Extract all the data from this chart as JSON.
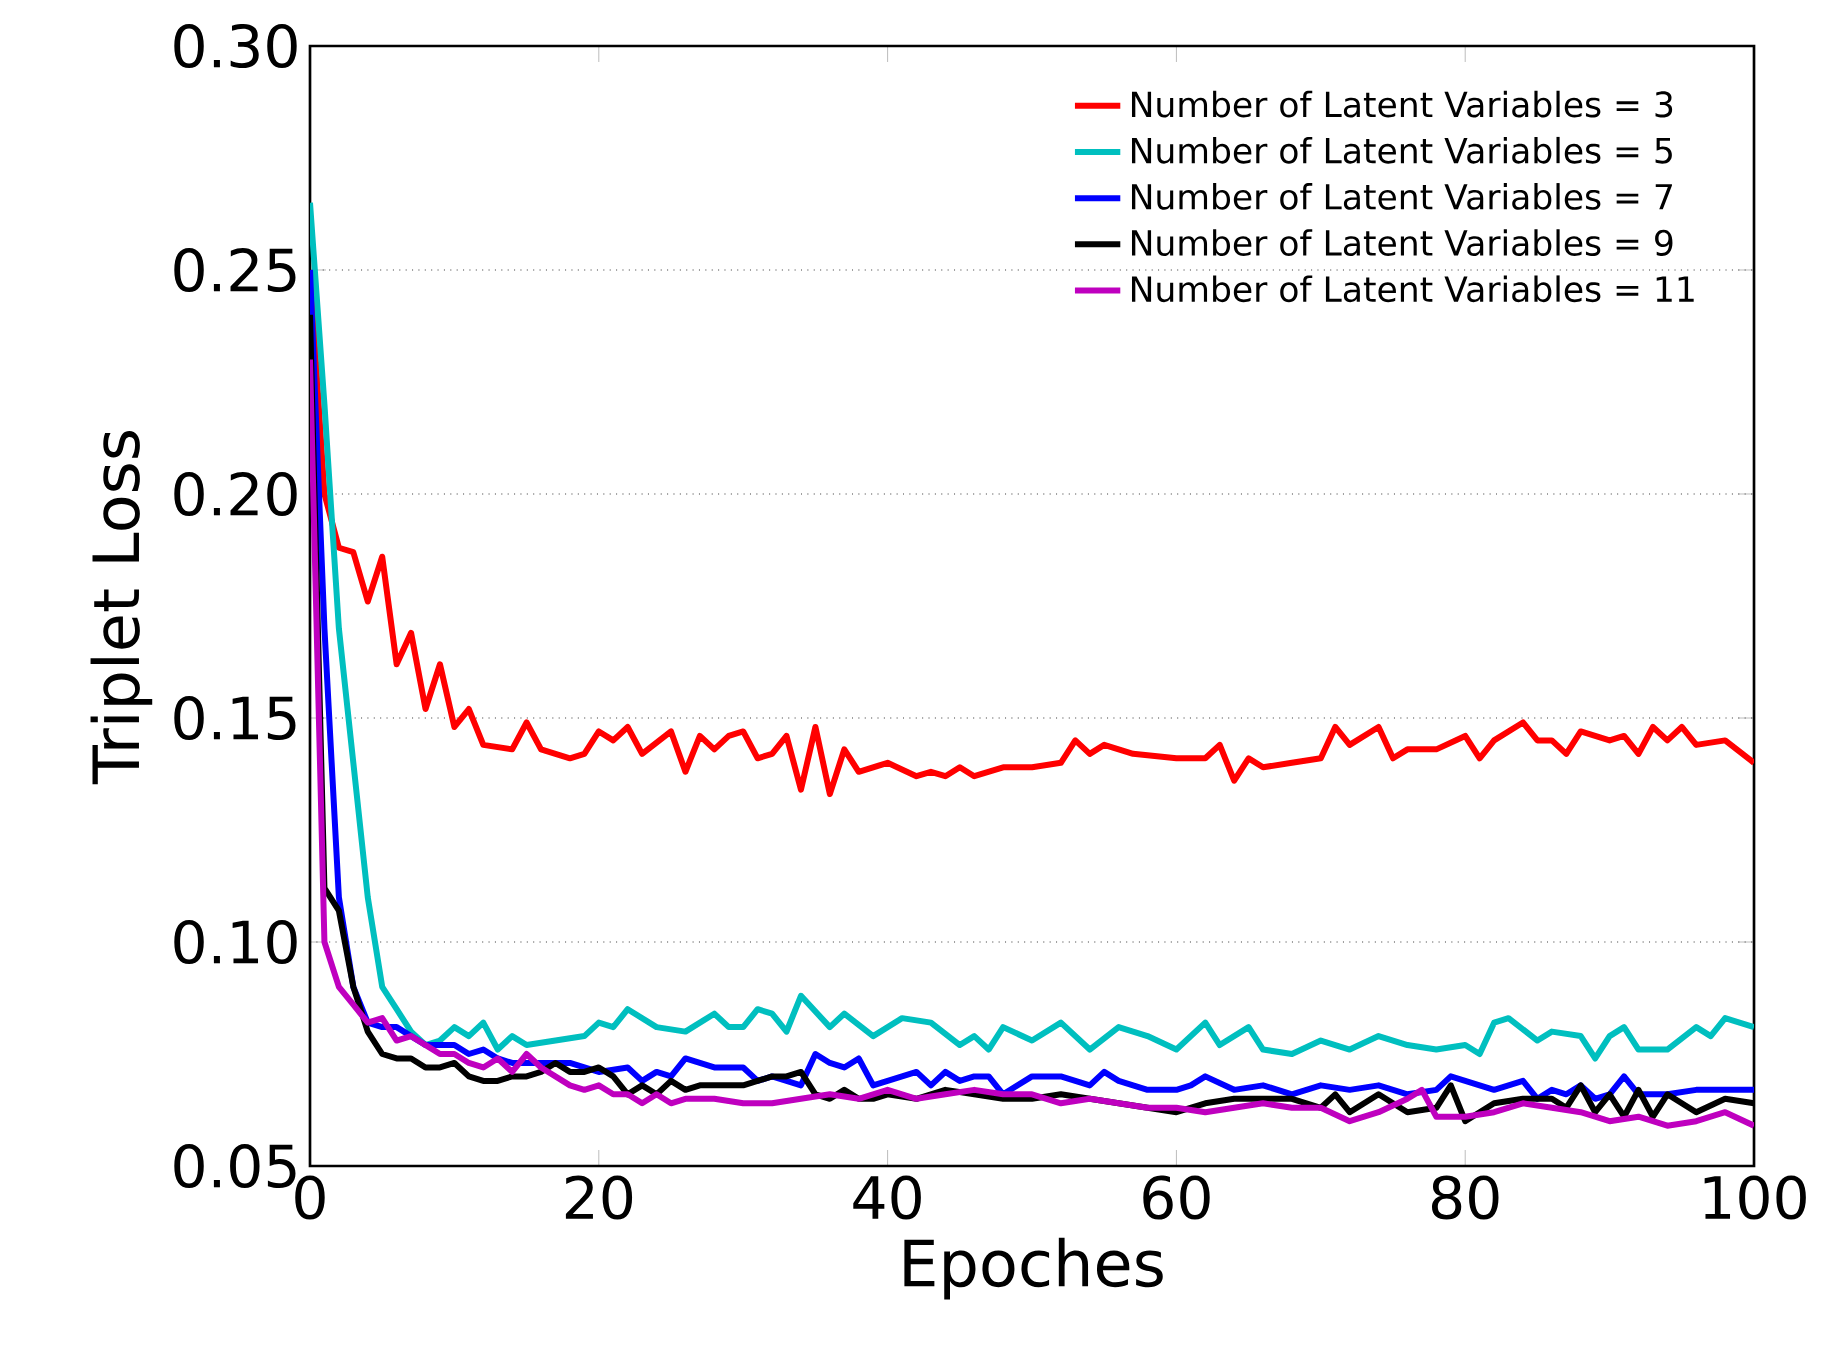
{
  "chart_data": {
    "type": "line",
    "xlabel": "Epoches",
    "ylabel": "Triplet Loss",
    "xlim": [
      0,
      100
    ],
    "ylim": [
      0.05,
      0.3
    ],
    "xticks": [
      0,
      20,
      40,
      60,
      80,
      100
    ],
    "yticks": [
      {
        "value": 0.05,
        "label": "0.05"
      },
      {
        "value": 0.1,
        "label": "0.10"
      },
      {
        "value": 0.15,
        "label": "0.15"
      },
      {
        "value": 0.2,
        "label": "0.20"
      },
      {
        "value": 0.25,
        "label": "0.25"
      },
      {
        "value": 0.3,
        "label": "0.30"
      }
    ],
    "grid": "y",
    "legend": "top right",
    "marker": "none",
    "line_style": "solid",
    "series": [
      {
        "name": "Number of Latent Variables = 3",
        "color": "#ff0000",
        "x": [
          0,
          1,
          2,
          3,
          4,
          5,
          6,
          7,
          8,
          9,
          10,
          11,
          12,
          14,
          15,
          16,
          18,
          19,
          20,
          21,
          22,
          23,
          25,
          26,
          27,
          28,
          29,
          30,
          31,
          32,
          33,
          34,
          35,
          36,
          37,
          38,
          40,
          42,
          43,
          44,
          45,
          46,
          48,
          50,
          52,
          53,
          54,
          55,
          57,
          60,
          62,
          63,
          64,
          65,
          66,
          68,
          70,
          71,
          72,
          74,
          75,
          76,
          78,
          80,
          81,
          82,
          84,
          85,
          86,
          87,
          88,
          90,
          91,
          92,
          93,
          94,
          95,
          96,
          98,
          100
        ],
        "values": [
          0.25,
          0.2,
          0.188,
          0.187,
          0.176,
          0.186,
          0.162,
          0.169,
          0.152,
          0.162,
          0.148,
          0.152,
          0.144,
          0.143,
          0.149,
          0.143,
          0.141,
          0.142,
          0.147,
          0.145,
          0.148,
          0.142,
          0.147,
          0.138,
          0.146,
          0.143,
          0.146,
          0.147,
          0.141,
          0.142,
          0.146,
          0.134,
          0.148,
          0.133,
          0.143,
          0.138,
          0.14,
          0.137,
          0.138,
          0.137,
          0.139,
          0.137,
          0.139,
          0.139,
          0.14,
          0.145,
          0.142,
          0.144,
          0.142,
          0.141,
          0.141,
          0.144,
          0.136,
          0.141,
          0.139,
          0.14,
          0.141,
          0.148,
          0.144,
          0.148,
          0.141,
          0.143,
          0.143,
          0.146,
          0.141,
          0.145,
          0.149,
          0.145,
          0.145,
          0.142,
          0.147,
          0.145,
          0.146,
          0.142,
          0.148,
          0.145,
          0.148,
          0.144,
          0.145,
          0.14
        ]
      },
      {
        "name": "Number of Latent Variables = 5",
        "color": "#00bfbf",
        "x": [
          0,
          1,
          2,
          3,
          4,
          5,
          6,
          7,
          8,
          9,
          10,
          11,
          12,
          13,
          14,
          15,
          17,
          19,
          20,
          21,
          22,
          24,
          26,
          28,
          29,
          30,
          31,
          32,
          33,
          34,
          36,
          37,
          39,
          41,
          43,
          45,
          46,
          47,
          48,
          50,
          52,
          54,
          56,
          58,
          60,
          62,
          63,
          65,
          66,
          68,
          70,
          72,
          74,
          76,
          78,
          80,
          81,
          82,
          83,
          85,
          86,
          88,
          89,
          90,
          91,
          92,
          94,
          96,
          97,
          98,
          100
        ],
        "values": [
          0.265,
          0.22,
          0.17,
          0.14,
          0.11,
          0.09,
          0.085,
          0.08,
          0.077,
          0.078,
          0.081,
          0.079,
          0.082,
          0.076,
          0.079,
          0.077,
          0.078,
          0.079,
          0.082,
          0.081,
          0.085,
          0.081,
          0.08,
          0.084,
          0.081,
          0.081,
          0.085,
          0.084,
          0.08,
          0.088,
          0.081,
          0.084,
          0.079,
          0.083,
          0.082,
          0.077,
          0.079,
          0.076,
          0.081,
          0.078,
          0.082,
          0.076,
          0.081,
          0.079,
          0.076,
          0.082,
          0.077,
          0.081,
          0.076,
          0.075,
          0.078,
          0.076,
          0.079,
          0.077,
          0.076,
          0.077,
          0.075,
          0.082,
          0.083,
          0.078,
          0.08,
          0.079,
          0.074,
          0.079,
          0.081,
          0.076,
          0.076,
          0.081,
          0.079,
          0.083,
          0.081
        ]
      },
      {
        "name": "Number of Latent Variables = 7",
        "color": "#0000ff",
        "x": [
          0,
          1,
          2,
          3,
          4,
          5,
          6,
          7,
          8,
          9,
          10,
          11,
          12,
          13,
          14,
          16,
          17,
          18,
          20,
          22,
          23,
          24,
          25,
          26,
          27,
          28,
          30,
          31,
          32,
          34,
          35,
          36,
          37,
          38,
          39,
          41,
          42,
          43,
          44,
          45,
          46,
          47,
          48,
          50,
          52,
          54,
          55,
          56,
          58,
          60,
          61,
          62,
          64,
          66,
          68,
          70,
          72,
          74,
          76,
          78,
          79,
          80,
          82,
          84,
          85,
          86,
          87,
          88,
          89,
          90,
          91,
          92,
          94,
          96,
          100
        ],
        "values": [
          0.25,
          0.17,
          0.11,
          0.09,
          0.082,
          0.081,
          0.081,
          0.079,
          0.077,
          0.077,
          0.077,
          0.075,
          0.076,
          0.074,
          0.073,
          0.073,
          0.073,
          0.073,
          0.071,
          0.072,
          0.069,
          0.071,
          0.07,
          0.074,
          0.073,
          0.072,
          0.072,
          0.069,
          0.07,
          0.068,
          0.075,
          0.073,
          0.072,
          0.074,
          0.068,
          0.07,
          0.071,
          0.068,
          0.071,
          0.069,
          0.07,
          0.07,
          0.066,
          0.07,
          0.07,
          0.068,
          0.071,
          0.069,
          0.067,
          0.067,
          0.068,
          0.07,
          0.067,
          0.068,
          0.066,
          0.068,
          0.067,
          0.068,
          0.066,
          0.067,
          0.07,
          0.069,
          0.067,
          0.069,
          0.065,
          0.067,
          0.066,
          0.068,
          0.065,
          0.066,
          0.07,
          0.066,
          0.066,
          0.067,
          0.067
        ]
      },
      {
        "name": "Number of Latent Variables = 9",
        "color": "#000000",
        "x": [
          0,
          1,
          2,
          3,
          4,
          5,
          6,
          7,
          8,
          9,
          10,
          11,
          12,
          13,
          14,
          15,
          16,
          17,
          18,
          19,
          20,
          21,
          22,
          23,
          24,
          25,
          26,
          27,
          28,
          30,
          32,
          33,
          34,
          35,
          36,
          37,
          38,
          39,
          40,
          42,
          44,
          46,
          48,
          50,
          52,
          54,
          56,
          58,
          60,
          62,
          64,
          66,
          68,
          70,
          71,
          72,
          74,
          76,
          78,
          79,
          80,
          82,
          84,
          86,
          87,
          88,
          89,
          90,
          91,
          92,
          93,
          94,
          96,
          98,
          100
        ],
        "values": [
          0.24,
          0.112,
          0.107,
          0.09,
          0.08,
          0.075,
          0.074,
          0.074,
          0.072,
          0.072,
          0.073,
          0.07,
          0.069,
          0.069,
          0.07,
          0.07,
          0.071,
          0.073,
          0.071,
          0.071,
          0.072,
          0.07,
          0.066,
          0.068,
          0.066,
          0.069,
          0.067,
          0.068,
          0.068,
          0.068,
          0.07,
          0.07,
          0.071,
          0.066,
          0.065,
          0.067,
          0.065,
          0.065,
          0.066,
          0.065,
          0.067,
          0.066,
          0.065,
          0.065,
          0.066,
          0.065,
          0.064,
          0.063,
          0.062,
          0.064,
          0.065,
          0.065,
          0.065,
          0.063,
          0.066,
          0.062,
          0.066,
          0.062,
          0.063,
          0.068,
          0.06,
          0.064,
          0.065,
          0.065,
          0.063,
          0.068,
          0.062,
          0.066,
          0.061,
          0.067,
          0.061,
          0.066,
          0.062,
          0.065,
          0.064
        ]
      },
      {
        "name": "Number of Latent Variables = 11",
        "color": "#bf00bf",
        "x": [
          0,
          1,
          2,
          3,
          4,
          5,
          6,
          7,
          8,
          9,
          10,
          11,
          12,
          13,
          14,
          15,
          16,
          17,
          18,
          19,
          20,
          21,
          22,
          23,
          24,
          25,
          26,
          28,
          30,
          32,
          34,
          36,
          38,
          40,
          42,
          44,
          46,
          48,
          50,
          52,
          54,
          56,
          58,
          60,
          62,
          64,
          66,
          68,
          70,
          72,
          74,
          76,
          77,
          78,
          80,
          82,
          84,
          86,
          88,
          90,
          92,
          94,
          96,
          98,
          100
        ],
        "values": [
          0.23,
          0.1,
          0.09,
          0.086,
          0.082,
          0.083,
          0.078,
          0.079,
          0.077,
          0.075,
          0.075,
          0.073,
          0.072,
          0.074,
          0.071,
          0.075,
          0.072,
          0.07,
          0.068,
          0.067,
          0.068,
          0.066,
          0.066,
          0.064,
          0.066,
          0.064,
          0.065,
          0.065,
          0.064,
          0.064,
          0.065,
          0.066,
          0.065,
          0.067,
          0.065,
          0.066,
          0.067,
          0.066,
          0.066,
          0.064,
          0.065,
          0.064,
          0.063,
          0.063,
          0.062,
          0.063,
          0.064,
          0.063,
          0.063,
          0.06,
          0.062,
          0.065,
          0.067,
          0.061,
          0.061,
          0.062,
          0.064,
          0.063,
          0.062,
          0.06,
          0.061,
          0.059,
          0.06,
          0.062,
          0.059
        ]
      }
    ]
  }
}
